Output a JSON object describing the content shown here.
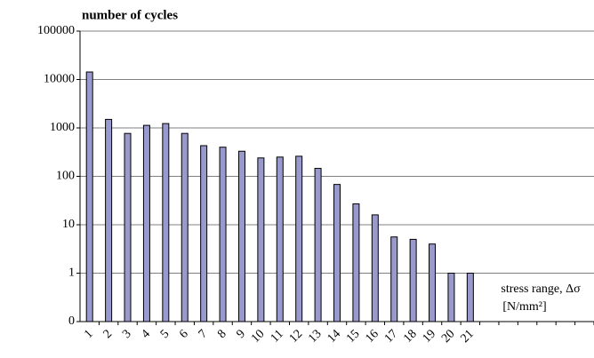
{
  "chart_data": {
    "type": "bar",
    "title": "number of cycles",
    "x_label": "stress range, Δσ",
    "x_unit": "[N/mm²]",
    "categories": [
      "1",
      "2",
      "3",
      "4",
      "5",
      "6",
      "7",
      "8",
      "9",
      "10",
      "11",
      "12",
      "13",
      "14",
      "15",
      "16",
      "17",
      "18",
      "19",
      "20",
      "21",
      null,
      null,
      null,
      null,
      null,
      null
    ],
    "values": [
      14300,
      1500,
      770,
      1130,
      1230,
      770,
      430,
      400,
      330,
      240,
      250,
      260,
      146,
      68,
      27,
      16,
      5.6,
      5,
      4,
      1,
      1,
      null,
      null,
      null,
      null,
      null,
      null
    ],
    "color": "#9999cc",
    "log_scale": true,
    "ylim": [
      0.1,
      100000
    ],
    "yticks": [
      {
        "value": 0.1,
        "label": "0"
      },
      1,
      10,
      100,
      1000,
      10000,
      100000
    ],
    "grid": true
  }
}
